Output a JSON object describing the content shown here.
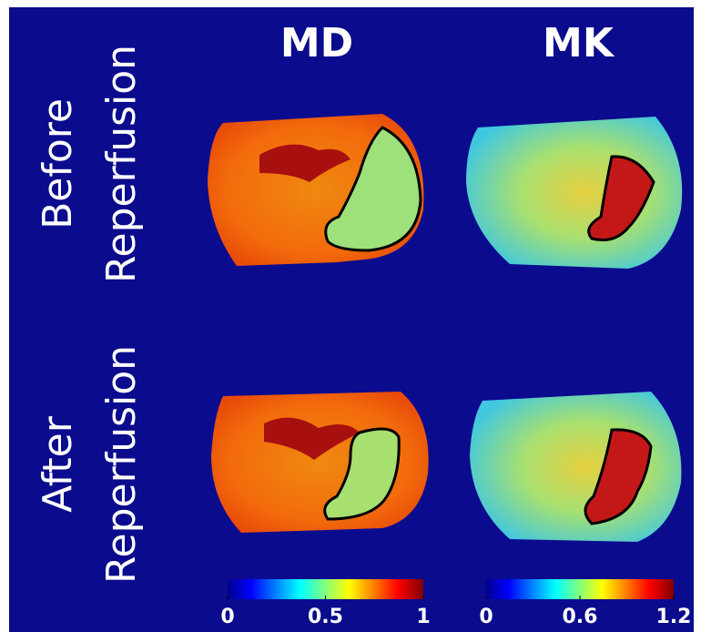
{
  "columns": [
    {
      "title": "MD",
      "colorbar": {
        "lim": [
          0,
          1
        ],
        "ticks": [
          0,
          0.5,
          1
        ]
      }
    },
    {
      "title": "MK",
      "colorbar": {
        "lim": [
          0,
          1.2
        ],
        "ticks": [
          0,
          0.6,
          1.2
        ]
      }
    }
  ],
  "rows": [
    {
      "label": [
        "Before",
        "Reperfusion"
      ]
    },
    {
      "label": [
        "After",
        "Reperfusion"
      ]
    }
  ]
}
